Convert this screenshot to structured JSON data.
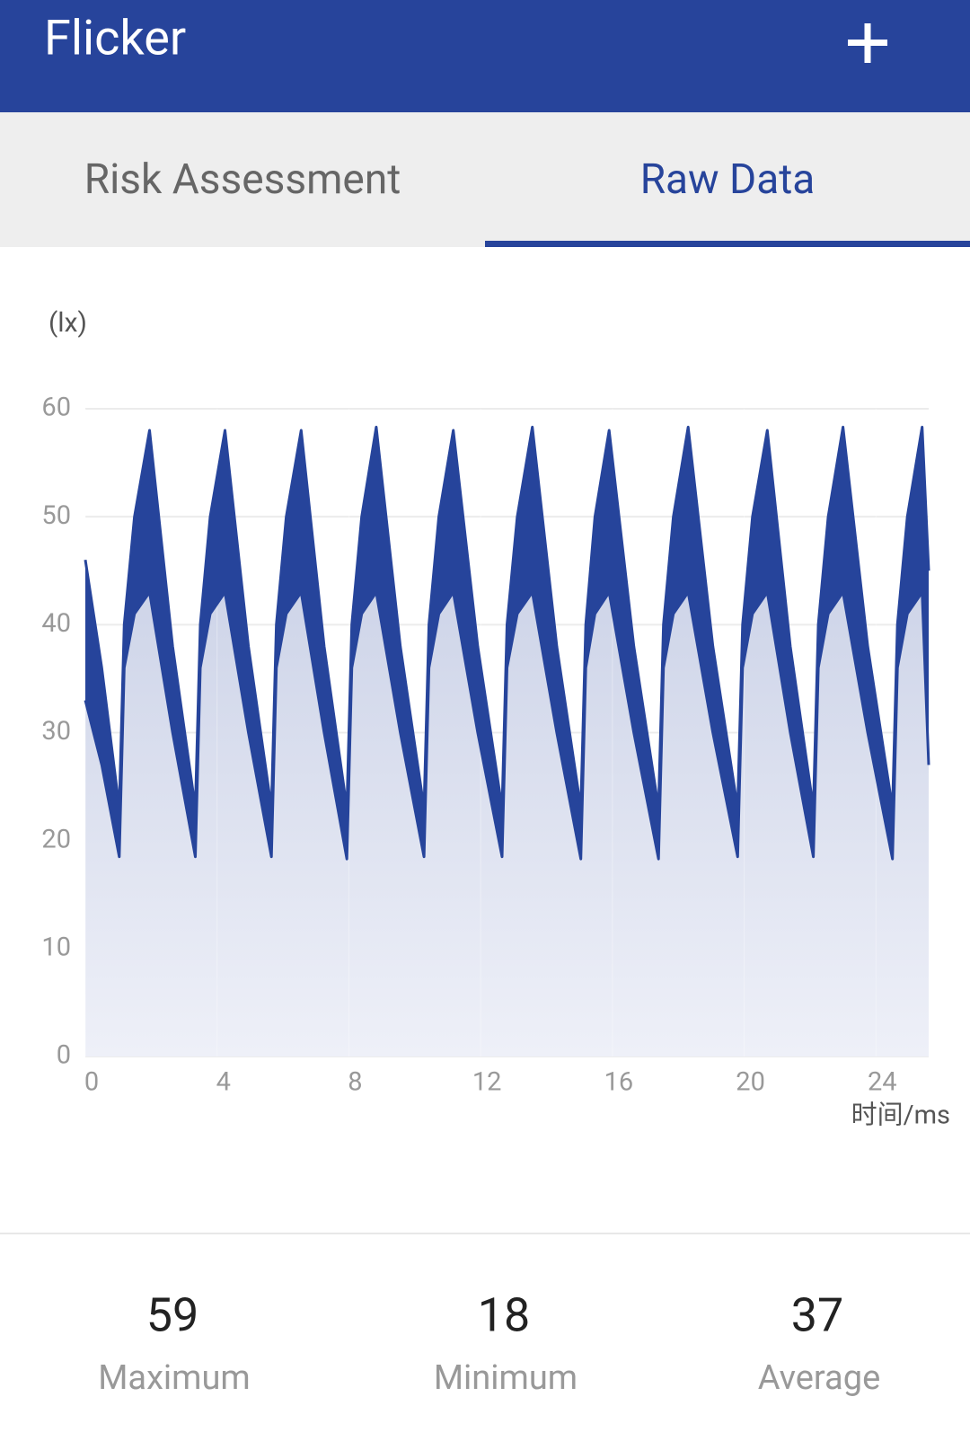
{
  "header": {
    "title": "Flicker"
  },
  "tabs": [
    "Risk Assessment",
    "Raw Data"
  ],
  "chart_data": {
    "type": "line",
    "ylabel": "(lx)",
    "xlabel": "时间/ms",
    "x": [
      0,
      0.5,
      1.03,
      1.18,
      1.49,
      1.95,
      2.65,
      3.34,
      3.49,
      3.79,
      4.24,
      4.95,
      5.65,
      5.8,
      6.1,
      6.55,
      7.25,
      7.94,
      8.09,
      8.39,
      8.83,
      9.56,
      10.28,
      10.43,
      10.73,
      11.17,
      11.91,
      12.65,
      12.8,
      13.11,
      13.57,
      14.31,
      15.04,
      15.19,
      15.47,
      15.9,
      16.65,
      17.4,
      17.55,
      17.85,
      18.3,
      19.05,
      19.8,
      19.95,
      20.25,
      20.7,
      21.4,
      22.1,
      22.25,
      22.55,
      23.0,
      23.75,
      24.5,
      24.65,
      24.95,
      25.4,
      25.6
    ],
    "series": [
      {
        "color": "#26449b",
        "values": [
          46,
          36,
          23,
          40,
          50,
          58,
          38,
          23,
          40,
          50,
          58,
          38,
          23,
          40,
          50,
          58,
          38,
          23,
          40,
          50,
          58.3,
          38,
          23,
          40,
          50,
          58,
          38,
          23,
          40,
          50,
          58.3,
          38,
          23,
          40,
          50,
          58,
          38,
          23,
          40,
          50,
          58.3,
          38,
          23,
          40,
          50,
          58,
          38,
          23,
          40,
          50,
          58.3,
          38,
          23,
          40,
          50,
          58.3,
          45
        ]
      },
      {
        "color": "#26449b",
        "values": [
          33,
          27,
          18.5,
          36,
          41,
          43,
          30,
          18.5,
          36,
          41,
          43,
          30,
          18.5,
          36,
          41,
          43,
          30,
          18.3,
          36,
          41,
          43,
          30,
          18.5,
          36,
          41,
          43,
          30,
          18.5,
          36,
          41,
          43,
          30,
          18.3,
          36,
          41,
          43,
          30,
          18.3,
          36,
          41,
          43,
          30,
          18.5,
          36,
          41,
          43,
          30,
          18.5,
          36,
          41,
          43,
          30,
          18.3,
          36,
          41,
          43,
          27
        ]
      }
    ],
    "fill": "#c9d0e6",
    "xlim": [
      0,
      25.6
    ],
    "xticks": [
      0,
      4,
      8,
      12,
      16,
      20,
      24
    ],
    "ylim": [
      0,
      60
    ],
    "yticks": [
      0,
      10,
      20,
      30,
      40,
      50,
      60
    ],
    "grid": true
  },
  "stats": [
    {
      "value": 59,
      "label": "Maximum"
    },
    {
      "value": 18,
      "label": "Minimum"
    },
    {
      "value": 37,
      "label": "Average"
    }
  ]
}
